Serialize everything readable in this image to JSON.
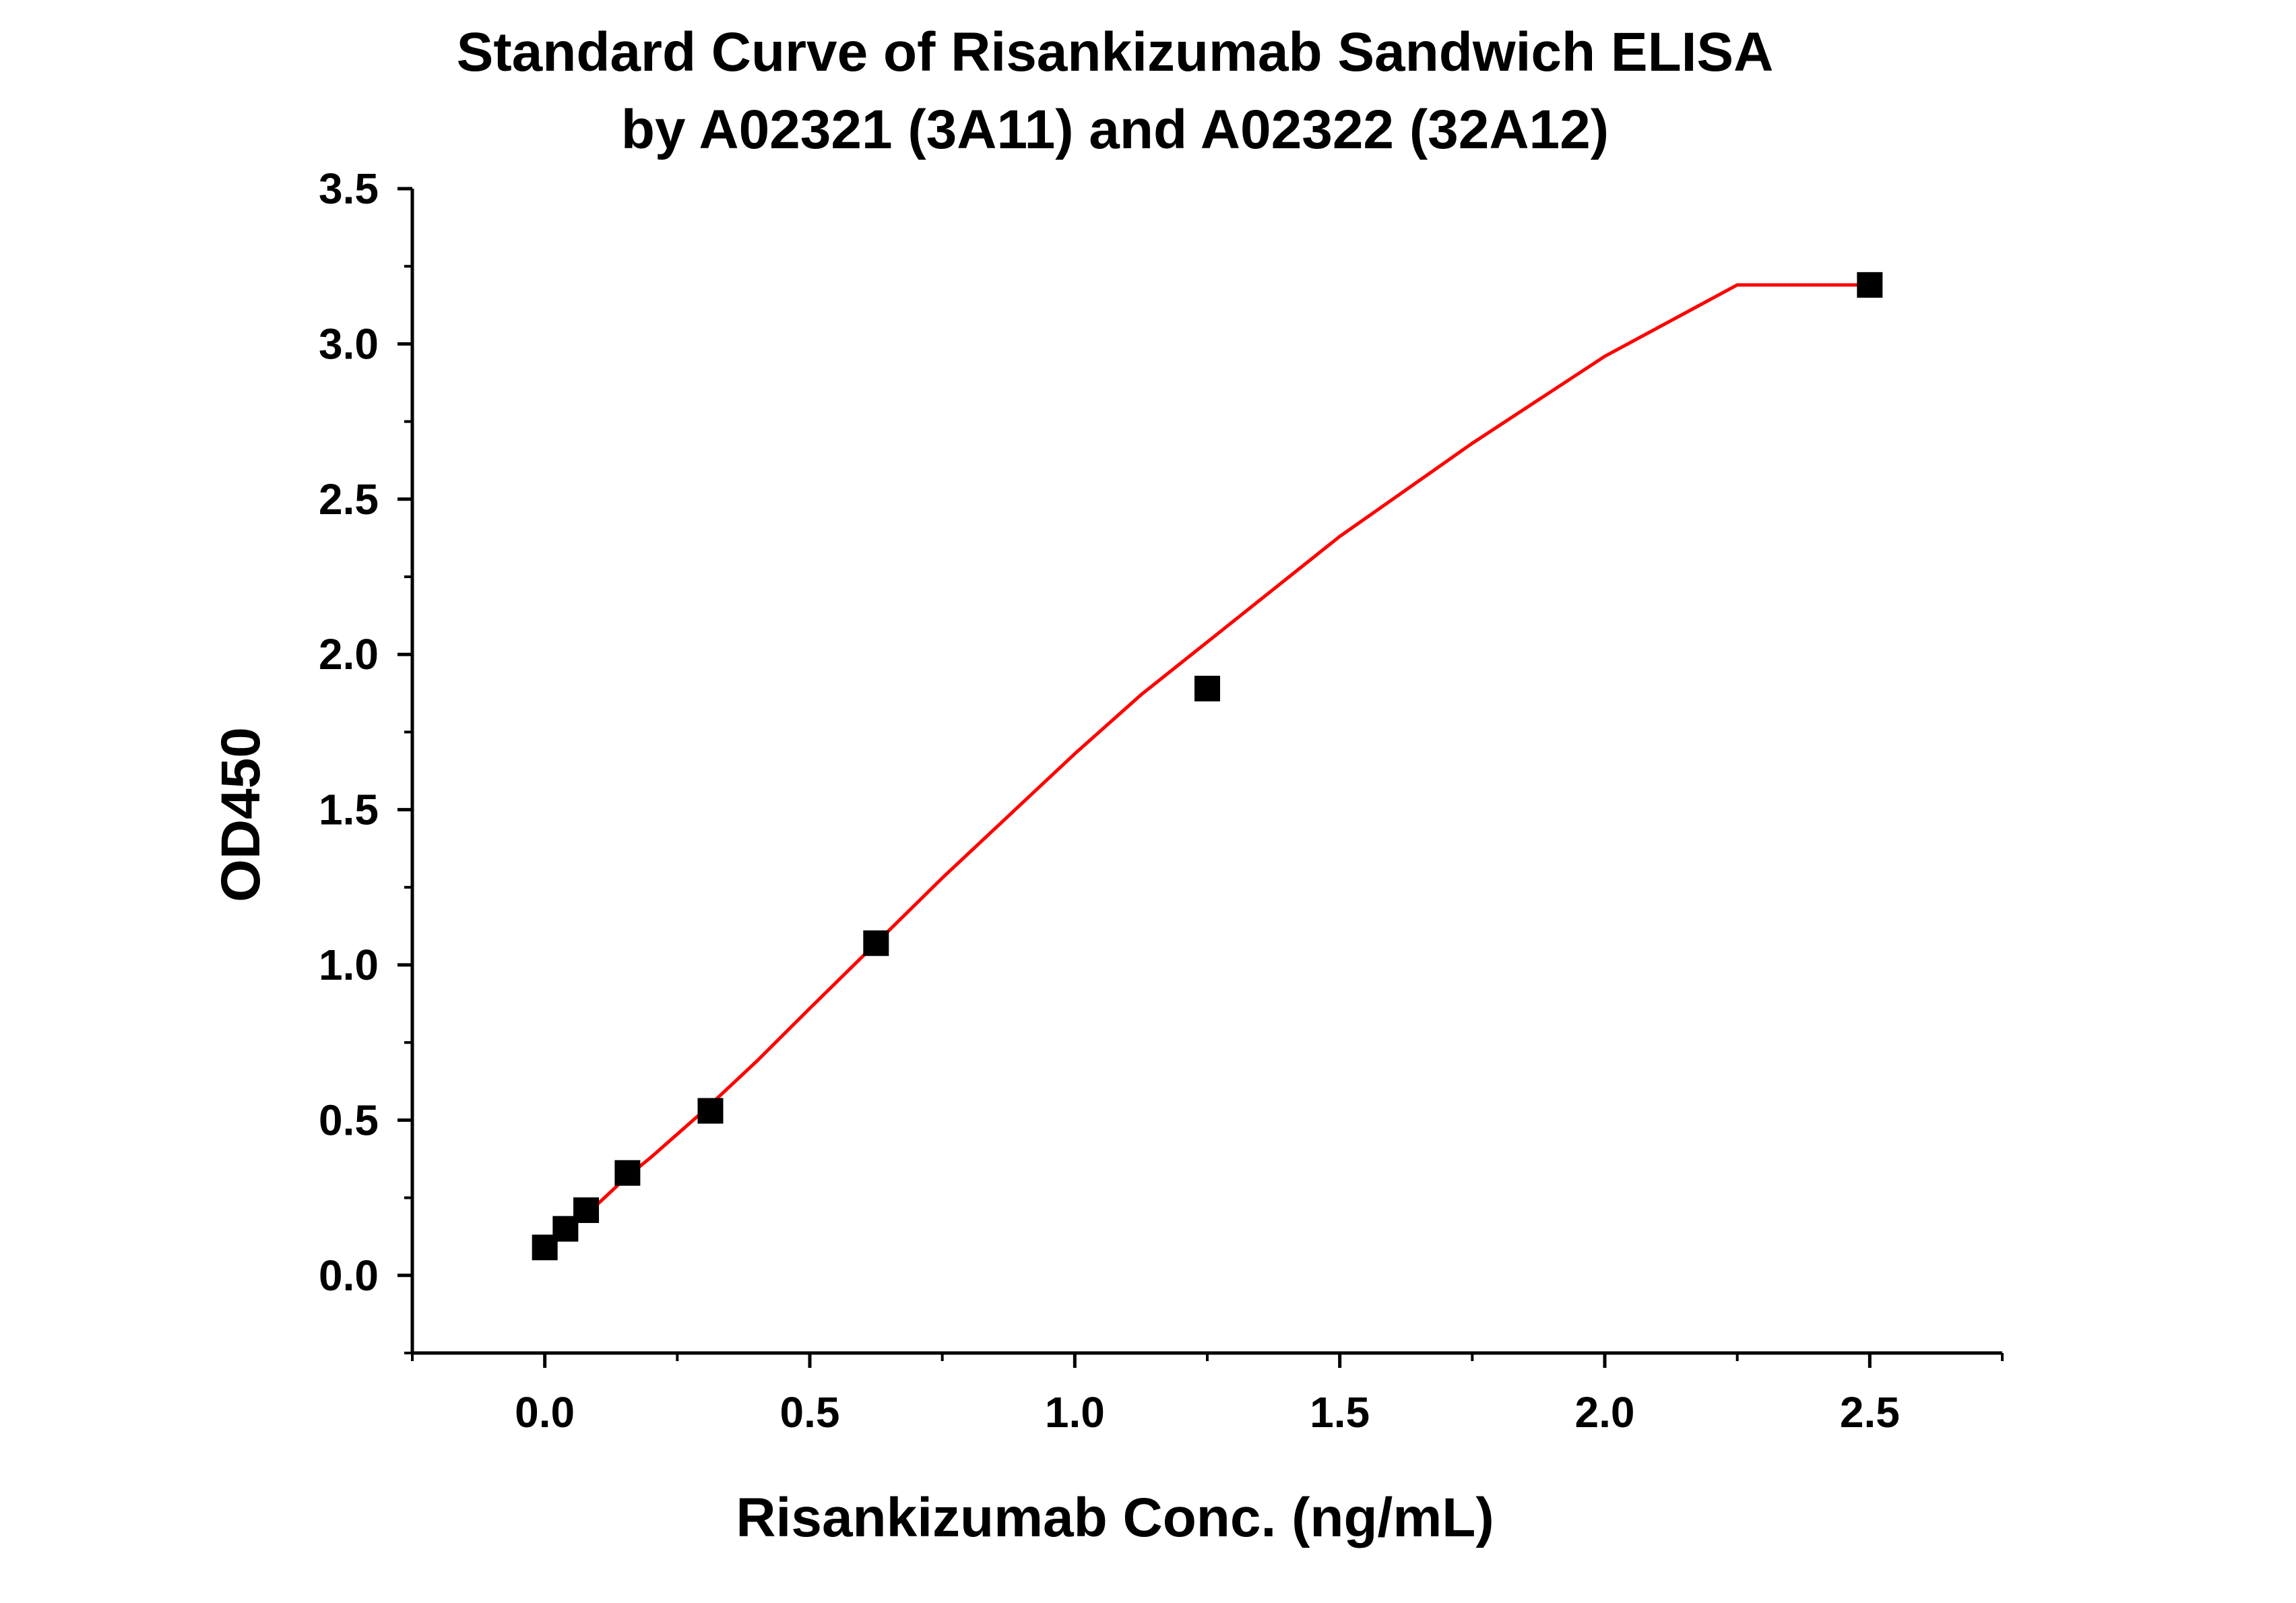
{
  "chart_data": {
    "type": "scatter",
    "title": "Standard Curve of Risankizumab Sandwich ELISA",
    "subtitle": "by A02321 (3A11) and A02322 (32A12)",
    "xlabel": "Risankizumab Conc. (ng/mL)",
    "ylabel": "OD450",
    "xlim": [
      -0.25,
      2.75
    ],
    "ylim": [
      -0.25,
      3.5
    ],
    "x_ticks": [
      0.0,
      0.5,
      1.0,
      1.5,
      2.0,
      2.5
    ],
    "y_ticks": [
      0.0,
      0.5,
      1.0,
      1.5,
      2.0,
      2.5,
      3.0,
      3.5
    ],
    "x_tick_labels": [
      "0.0",
      "0.5",
      "1.0",
      "1.5",
      "2.0",
      "2.5"
    ],
    "y_tick_labels": [
      "0.0",
      "0.5",
      "1.0",
      "1.5",
      "2.0",
      "2.5",
      "3.0",
      "3.5"
    ],
    "grid": false,
    "legend": "none",
    "series": [
      {
        "marker": "square",
        "color": "#000000",
        "x": [
          0.0,
          0.039,
          0.078,
          0.156,
          0.3125,
          0.625,
          1.25,
          2.5
        ],
        "y": [
          0.09,
          0.15,
          0.21,
          0.33,
          0.53,
          1.07,
          1.89,
          3.19
        ]
      }
    ],
    "fit_curve": {
      "color": "#ff0000",
      "x": [
        0.0,
        0.05,
        0.1,
        0.15,
        0.2,
        0.3,
        0.4,
        0.5,
        0.625,
        0.75,
        0.875,
        1.0,
        1.125,
        1.25,
        1.5,
        1.75,
        2.0,
        2.25,
        2.5
      ],
      "y": [
        0.09,
        0.16,
        0.23,
        0.31,
        0.38,
        0.53,
        0.69,
        0.86,
        1.07,
        1.28,
        1.48,
        1.68,
        1.87,
        2.04,
        2.38,
        2.68,
        2.96,
        3.21,
        3.19
      ]
    }
  }
}
